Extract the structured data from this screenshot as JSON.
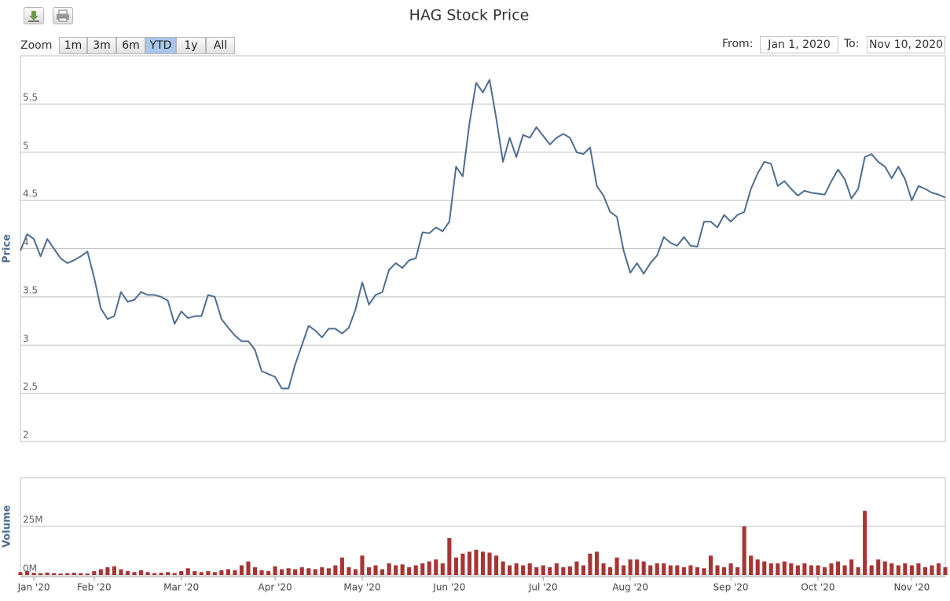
{
  "ui": {
    "zoom_label": "Zoom",
    "zoom_buttons": [
      "1m",
      "3m",
      "6m",
      "YTD",
      "1y",
      "All"
    ],
    "active_zoom": "YTD",
    "from_label": "From:",
    "from": "Jan 1, 2020",
    "to_label": "To:",
    "to": "Nov 10, 2020"
  },
  "chart_data": {
    "type": "stock",
    "title": "HAG Stock Price",
    "categories": [
      null,
      null,
      "Jan '20",
      null,
      null,
      null,
      null,
      null,
      null,
      null,
      null,
      "Feb '20",
      null,
      null,
      null,
      null,
      null,
      null,
      null,
      null,
      null,
      null,
      null,
      null,
      "Mar '20",
      null,
      null,
      null,
      null,
      null,
      null,
      null,
      null,
      null,
      null,
      null,
      null,
      null,
      "Apr '20",
      null,
      null,
      null,
      null,
      null,
      null,
      null,
      null,
      null,
      null,
      null,
      null,
      "May '20",
      null,
      null,
      null,
      null,
      null,
      null,
      null,
      null,
      null,
      null,
      null,
      null,
      "Jun '20",
      null,
      null,
      null,
      null,
      null,
      null,
      null,
      null,
      null,
      null,
      null,
      null,
      null,
      "Jul '20",
      null,
      null,
      null,
      null,
      null,
      null,
      null,
      null,
      null,
      null,
      null,
      null,
      "Aug '20",
      null,
      null,
      null,
      null,
      null,
      null,
      null,
      null,
      null,
      null,
      null,
      null,
      null,
      null,
      "Sep '20",
      null,
      null,
      null,
      null,
      null,
      null,
      null,
      null,
      null,
      null,
      null,
      null,
      "Oct '20",
      null,
      null,
      null,
      null,
      null,
      null,
      null,
      null,
      null,
      null,
      null,
      null,
      null,
      "Nov '20",
      null,
      null,
      null,
      null,
      null
    ],
    "series": [
      {
        "name": "Price",
        "type": "line",
        "color": "#4d6d91",
        "values": [
          3.98,
          4.15,
          4.1,
          3.92,
          4.1,
          4.0,
          3.9,
          3.85,
          3.88,
          3.92,
          3.97,
          3.7,
          3.38,
          3.27,
          3.3,
          3.55,
          3.45,
          3.47,
          3.55,
          3.52,
          3.52,
          3.5,
          3.46,
          3.22,
          3.35,
          3.28,
          3.3,
          3.3,
          3.52,
          3.5,
          3.27,
          3.18,
          3.1,
          3.04,
          3.04,
          2.95,
          2.73,
          2.7,
          2.67,
          2.55,
          2.55,
          2.8,
          3.0,
          3.2,
          3.15,
          3.08,
          3.17,
          3.17,
          3.12,
          3.18,
          3.37,
          3.65,
          3.42,
          3.52,
          3.55,
          3.78,
          3.85,
          3.8,
          3.88,
          3.9,
          4.17,
          4.16,
          4.22,
          4.18,
          4.28,
          4.85,
          4.75,
          5.3,
          5.72,
          5.62,
          5.75,
          5.35,
          4.9,
          5.15,
          4.95,
          5.18,
          5.15,
          5.26,
          5.17,
          5.08,
          5.15,
          5.19,
          5.15,
          5.0,
          4.98,
          5.05,
          4.65,
          4.55,
          4.38,
          4.33,
          3.98,
          3.75,
          3.85,
          3.74,
          3.85,
          3.93,
          4.12,
          4.06,
          4.03,
          4.12,
          4.03,
          4.02,
          4.28,
          4.28,
          4.22,
          4.35,
          4.28,
          4.35,
          4.38,
          4.62,
          4.78,
          4.9,
          4.88,
          4.65,
          4.7,
          4.62,
          4.55,
          4.6,
          4.58,
          4.57,
          4.56,
          4.7,
          4.82,
          4.72,
          4.52,
          4.62,
          4.95,
          4.98,
          4.9,
          4.85,
          4.73,
          4.85,
          4.72,
          4.5,
          4.65,
          4.62,
          4.58,
          4.56,
          4.53
        ]
      },
      {
        "name": "Volume",
        "type": "bar",
        "axis": "y2",
        "color": "#a83434",
        "values": [
          1.5,
          2,
          1.2,
          1,
          1.3,
          1,
          0.8,
          1,
          1.2,
          1,
          0.8,
          2,
          3,
          4,
          4.5,
          3,
          2,
          1.5,
          2.5,
          1.5,
          1,
          1.2,
          1.5,
          1,
          2,
          3.5,
          2,
          1.5,
          2,
          1.5,
          2.5,
          3,
          2.5,
          5,
          7,
          4,
          2.5,
          2,
          4.5,
          3,
          3.5,
          3,
          4,
          3.5,
          3,
          4,
          3.5,
          5,
          9,
          4,
          3,
          10,
          4,
          5,
          3,
          6,
          5,
          5.5,
          4,
          5,
          6,
          7,
          8,
          6,
          19,
          9,
          11,
          12,
          13,
          12,
          11.5,
          10,
          7,
          5,
          6,
          5,
          6,
          4,
          5,
          4,
          6,
          4,
          4.5,
          7,
          5,
          11,
          12,
          6,
          4,
          9,
          5,
          8,
          8,
          7,
          5,
          6,
          6,
          5,
          5,
          4,
          5,
          4,
          3.5,
          10,
          5,
          4,
          6,
          4,
          25,
          10,
          8,
          7,
          6,
          6,
          7,
          6,
          5,
          6,
          5,
          5,
          4,
          6,
          7,
          5,
          8,
          4,
          33,
          5,
          8,
          7,
          6,
          5,
          6,
          5,
          6,
          4,
          5,
          6,
          4
        ]
      }
    ],
    "ylim": [
      2,
      6
    ],
    "yticks": [
      2,
      2.5,
      3,
      3.5,
      4,
      4.5,
      5,
      5.5
    ],
    "y2lim": [
      0,
      50
    ],
    "y2ticks": [
      {
        "value": 0,
        "label": "0M"
      },
      {
        "value": 25,
        "label": "25M"
      }
    ],
    "grid": true
  }
}
